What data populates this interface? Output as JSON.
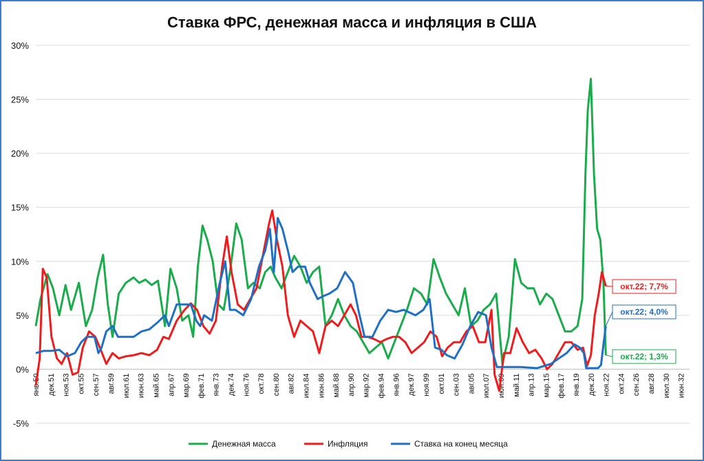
{
  "chart_data": {
    "type": "line",
    "title": "Ставка ФРС, денежная масса и инфляция в США",
    "y_ticks": [
      "30%",
      "25%",
      "20%",
      "15%",
      "10%",
      "5%",
      "0%",
      "-5%"
    ],
    "y_tick_values": [
      30,
      25,
      20,
      15,
      10,
      5,
      0,
      -5
    ],
    "ylim": [
      -5,
      30
    ],
    "x_ticks": [
      "янв.50",
      "дек.51",
      "ноя.53",
      "окт.55",
      "сен.57",
      "авг.59",
      "июл.61",
      "июн.63",
      "май.65",
      "апр.67",
      "мар.69",
      "фев.71",
      "янв.73",
      "дек.74",
      "ноя.76",
      "окт.78",
      "сен.80",
      "авг.82",
      "июл.84",
      "июн.86",
      "май.88",
      "апр.90",
      "мар.92",
      "фев.94",
      "янв.96",
      "дек.97",
      "ноя.99",
      "окт.01",
      "сен.03",
      "авг.05",
      "июл.07",
      "июн.09",
      "май.11",
      "апр.13",
      "мар.15",
      "фев.17",
      "янв.19",
      "дек.20",
      "ноя.22",
      "окт.24",
      "сен.26",
      "авг.28",
      "июл.30",
      "июн.32"
    ],
    "xlim": [
      1950.0,
      2033.5
    ],
    "grid": true,
    "legend_position": "bottom",
    "series": [
      {
        "name": "Денежная масса",
        "color": "#1aab4b",
        "x": [
          1950.0,
          1950.6,
          1951.5,
          1952.2,
          1953.0,
          1953.8,
          1954.5,
          1955.5,
          1956.4,
          1957.2,
          1957.9,
          1958.6,
          1959.2,
          1959.8,
          1960.6,
          1961.5,
          1962.5,
          1963.2,
          1964.0,
          1964.8,
          1965.6,
          1966.5,
          1967.2,
          1968.0,
          1968.7,
          1969.5,
          1970.1,
          1970.7,
          1971.3,
          1971.9,
          1972.6,
          1973.3,
          1974.0,
          1974.8,
          1975.6,
          1976.3,
          1977.1,
          1977.8,
          1978.6,
          1979.3,
          1980.0,
          1980.6,
          1981.4,
          1982.2,
          1983.0,
          1983.8,
          1984.6,
          1985.4,
          1986.2,
          1987.0,
          1987.8,
          1988.6,
          1989.4,
          1990.2,
          1991.0,
          1991.8,
          1992.6,
          1993.4,
          1994.2,
          1995.0,
          1995.8,
          1996.6,
          1997.4,
          1998.3,
          1999.2,
          2000.0,
          2000.8,
          2001.6,
          2002.4,
          2003.2,
          2004.0,
          2004.8,
          2005.6,
          2006.4,
          2007.2,
          2008.0,
          2008.8,
          2009.6,
          2010.4,
          2011.2,
          2012.0,
          2012.8,
          2013.6,
          2014.4,
          2015.2,
          2016.0,
          2016.8,
          2017.6,
          2018.4,
          2019.2,
          2019.8,
          2020.2,
          2020.5,
          2020.9,
          2021.3,
          2021.7,
          2022.1,
          2022.5,
          2022.8
        ],
        "values": [
          4.0,
          6.5,
          8.8,
          7.5,
          5.0,
          7.8,
          5.5,
          8.0,
          4.0,
          5.5,
          8.5,
          10.6,
          6.0,
          3.0,
          7.0,
          8.0,
          8.5,
          8.0,
          8.3,
          7.8,
          8.2,
          4.0,
          9.3,
          7.5,
          4.5,
          5.0,
          3.0,
          9.5,
          13.3,
          12.0,
          10.0,
          6.0,
          5.5,
          9.0,
          13.5,
          12.0,
          7.5,
          8.0,
          7.5,
          9.0,
          9.5,
          8.5,
          7.5,
          9.0,
          10.5,
          9.5,
          8.0,
          9.0,
          9.5,
          4.0,
          5.0,
          6.5,
          5.0,
          4.0,
          3.5,
          2.5,
          1.5,
          2.0,
          2.5,
          1.0,
          2.5,
          4.0,
          5.5,
          7.5,
          7.0,
          6.0,
          10.2,
          8.5,
          7.0,
          6.0,
          5.0,
          7.5,
          4.0,
          4.5,
          5.5,
          6.0,
          7.0,
          0.5,
          3.0,
          10.2,
          8.0,
          7.5,
          7.5,
          6.0,
          7.0,
          6.5,
          5.0,
          3.5,
          3.5,
          4.0,
          6.5,
          18.0,
          24.0,
          26.9,
          18.0,
          13.0,
          12.0,
          8.0,
          1.3
        ]
      },
      {
        "name": "Инфляция",
        "color": "#ee1c1c",
        "x": [
          1950.0,
          1950.5,
          1950.9,
          1951.4,
          1952.0,
          1952.7,
          1953.3,
          1954.0,
          1954.7,
          1955.4,
          1956.0,
          1956.8,
          1957.6,
          1958.3,
          1959.0,
          1959.8,
          1960.6,
          1961.5,
          1962.5,
          1963.5,
          1964.5,
          1965.5,
          1966.3,
          1967.0,
          1968.0,
          1969.0,
          1969.8,
          1970.6,
          1971.4,
          1972.2,
          1973.0,
          1973.8,
          1974.4,
          1975.0,
          1975.8,
          1976.6,
          1977.4,
          1978.2,
          1979.0,
          1979.8,
          1980.2,
          1980.8,
          1981.5,
          1982.2,
          1983.0,
          1983.8,
          1984.6,
          1985.4,
          1986.2,
          1987.0,
          1987.8,
          1988.6,
          1989.4,
          1990.2,
          1990.9,
          1991.6,
          1992.4,
          1993.2,
          1994.0,
          1994.8,
          1995.6,
          1996.4,
          1997.2,
          1998.0,
          1998.8,
          1999.6,
          2000.4,
          2001.2,
          2001.9,
          2002.6,
          2003.4,
          2004.2,
          2005.0,
          2005.8,
          2006.6,
          2007.4,
          2008.2,
          2008.6,
          2009.2,
          2009.8,
          2010.6,
          2011.4,
          2012.2,
          2013.0,
          2013.8,
          2014.6,
          2015.3,
          2016.0,
          2016.8,
          2017.6,
          2018.4,
          2019.2,
          2019.9,
          2020.4,
          2020.9,
          2021.4,
          2021.9,
          2022.3,
          2022.8
        ],
        "values": [
          -1.5,
          1.0,
          9.3,
          8.5,
          3.0,
          1.0,
          0.5,
          1.5,
          -0.5,
          -0.3,
          2.0,
          3.5,
          3.0,
          1.8,
          0.5,
          1.5,
          1.0,
          1.2,
          1.3,
          1.5,
          1.3,
          1.8,
          3.0,
          2.8,
          4.5,
          5.5,
          6.1,
          5.5,
          4.0,
          3.3,
          4.5,
          9.5,
          12.3,
          9.0,
          6.0,
          5.5,
          6.5,
          7.5,
          10.5,
          13.5,
          14.7,
          12.0,
          9.5,
          5.0,
          3.0,
          4.5,
          4.0,
          3.5,
          1.5,
          4.0,
          4.5,
          4.0,
          5.0,
          6.0,
          5.0,
          3.0,
          3.0,
          2.8,
          2.5,
          2.8,
          3.0,
          3.0,
          2.5,
          1.5,
          2.0,
          2.5,
          3.5,
          3.0,
          1.2,
          2.0,
          2.5,
          2.5,
          3.5,
          4.0,
          2.5,
          2.5,
          5.5,
          -0.5,
          -2.0,
          1.5,
          1.5,
          3.8,
          2.5,
          1.5,
          1.8,
          1.0,
          0.0,
          0.5,
          1.5,
          2.5,
          2.5,
          1.8,
          2.0,
          0.3,
          1.3,
          5.0,
          7.0,
          9.0,
          7.7
        ]
      },
      {
        "name": "Ставка на конец месяца",
        "color": "#1f6fc4",
        "x": [
          1950.0,
          1951.0,
          1952.0,
          1953.0,
          1954.0,
          1955.0,
          1955.8,
          1956.5,
          1957.5,
          1958.0,
          1958.4,
          1959.0,
          1959.8,
          1960.5,
          1961.5,
          1962.5,
          1963.5,
          1964.5,
          1965.5,
          1966.5,
          1967.0,
          1968.0,
          1969.0,
          1969.8,
          1970.5,
          1971.0,
          1971.5,
          1972.5,
          1973.5,
          1974.2,
          1974.8,
          1975.5,
          1976.5,
          1977.5,
          1978.5,
          1979.3,
          1979.9,
          1980.4,
          1980.9,
          1981.5,
          1982.2,
          1982.8,
          1983.5,
          1984.4,
          1985.0,
          1986.0,
          1986.8,
          1987.5,
          1988.5,
          1989.5,
          1990.5,
          1991.2,
          1992.0,
          1993.0,
          1994.0,
          1995.0,
          1996.0,
          1997.0,
          1998.5,
          1999.5,
          2000.3,
          2001.0,
          2001.8,
          2002.5,
          2003.5,
          2004.5,
          2005.5,
          2006.5,
          2007.5,
          2008.2,
          2008.9,
          2010.0,
          2012.0,
          2014.0,
          2015.8,
          2016.8,
          2017.8,
          2018.8,
          2019.5,
          2020.0,
          2020.3,
          2021.0,
          2021.8,
          2022.2,
          2022.5,
          2022.8
        ],
        "values": [
          1.5,
          1.7,
          1.7,
          1.8,
          1.2,
          1.5,
          2.5,
          3.0,
          3.0,
          1.5,
          2.0,
          3.5,
          4.0,
          3.0,
          3.0,
          3.0,
          3.5,
          3.7,
          4.3,
          5.0,
          4.0,
          6.0,
          6.0,
          6.0,
          4.5,
          4.0,
          5.0,
          4.5,
          8.0,
          10.0,
          5.5,
          5.5,
          5.0,
          6.5,
          9.5,
          11.0,
          13.0,
          9.0,
          14.0,
          13.0,
          11.0,
          9.0,
          9.5,
          9.5,
          8.0,
          6.5,
          6.8,
          7.0,
          7.5,
          9.0,
          8.0,
          5.5,
          3.0,
          3.0,
          4.5,
          5.5,
          5.3,
          5.5,
          5.0,
          5.5,
          6.5,
          2.0,
          1.8,
          1.3,
          1.0,
          2.3,
          4.0,
          5.3,
          5.0,
          2.0,
          0.2,
          0.2,
          0.2,
          0.1,
          0.5,
          1.0,
          1.5,
          2.3,
          2.0,
          1.5,
          0.1,
          0.1,
          0.1,
          0.4,
          2.3,
          4.0
        ]
      }
    ],
    "callouts": [
      {
        "text": "окт.22; 7,7%",
        "color": "#ee1c1c"
      },
      {
        "text": "окт.22; 4,0%",
        "color": "#1f6fc4"
      },
      {
        "text": "окт.22; 1,3%",
        "color": "#1aab4b"
      }
    ]
  }
}
